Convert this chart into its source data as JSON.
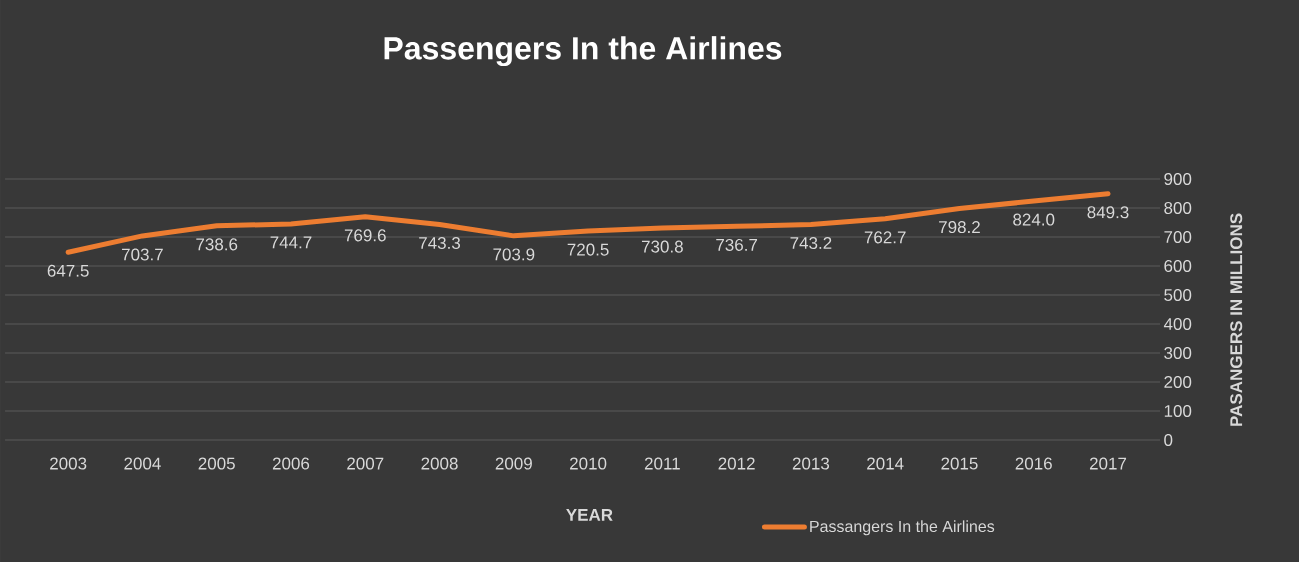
{
  "chart_data": {
    "type": "line",
    "title": "Passengers In the Airlines",
    "xlabel": "YEAR",
    "ylabel": "PASANGERS IN MILLIONS",
    "categories": [
      "2003",
      "2004",
      "2005",
      "2006",
      "2007",
      "2008",
      "2009",
      "2010",
      "2011",
      "2012",
      "2013",
      "2014",
      "2015",
      "2016",
      "2017"
    ],
    "series": [
      {
        "name": "Passangers In the Airlines",
        "color": "#ed7d31",
        "values": [
          647.5,
          703.7,
          738.6,
          744.7,
          769.6,
          743.3,
          703.9,
          720.5,
          730.8,
          736.7,
          743.2,
          762.7,
          798.2,
          824.0,
          849.3
        ],
        "value_labels": [
          "647.5",
          "703.7",
          "738.6",
          "744.7",
          "769.6",
          "743.3",
          "703.9",
          "720.5",
          "730.8",
          "736.7",
          "743.2",
          "762.7",
          "798.2",
          "824.0",
          "849.3"
        ]
      }
    ],
    "ylim": [
      0,
      900
    ],
    "yticks": [
      0,
      100,
      200,
      300,
      400,
      500,
      600,
      700,
      800,
      900
    ],
    "grid": "y",
    "legend": "bottom",
    "marker": "none",
    "line_style": "solid"
  }
}
